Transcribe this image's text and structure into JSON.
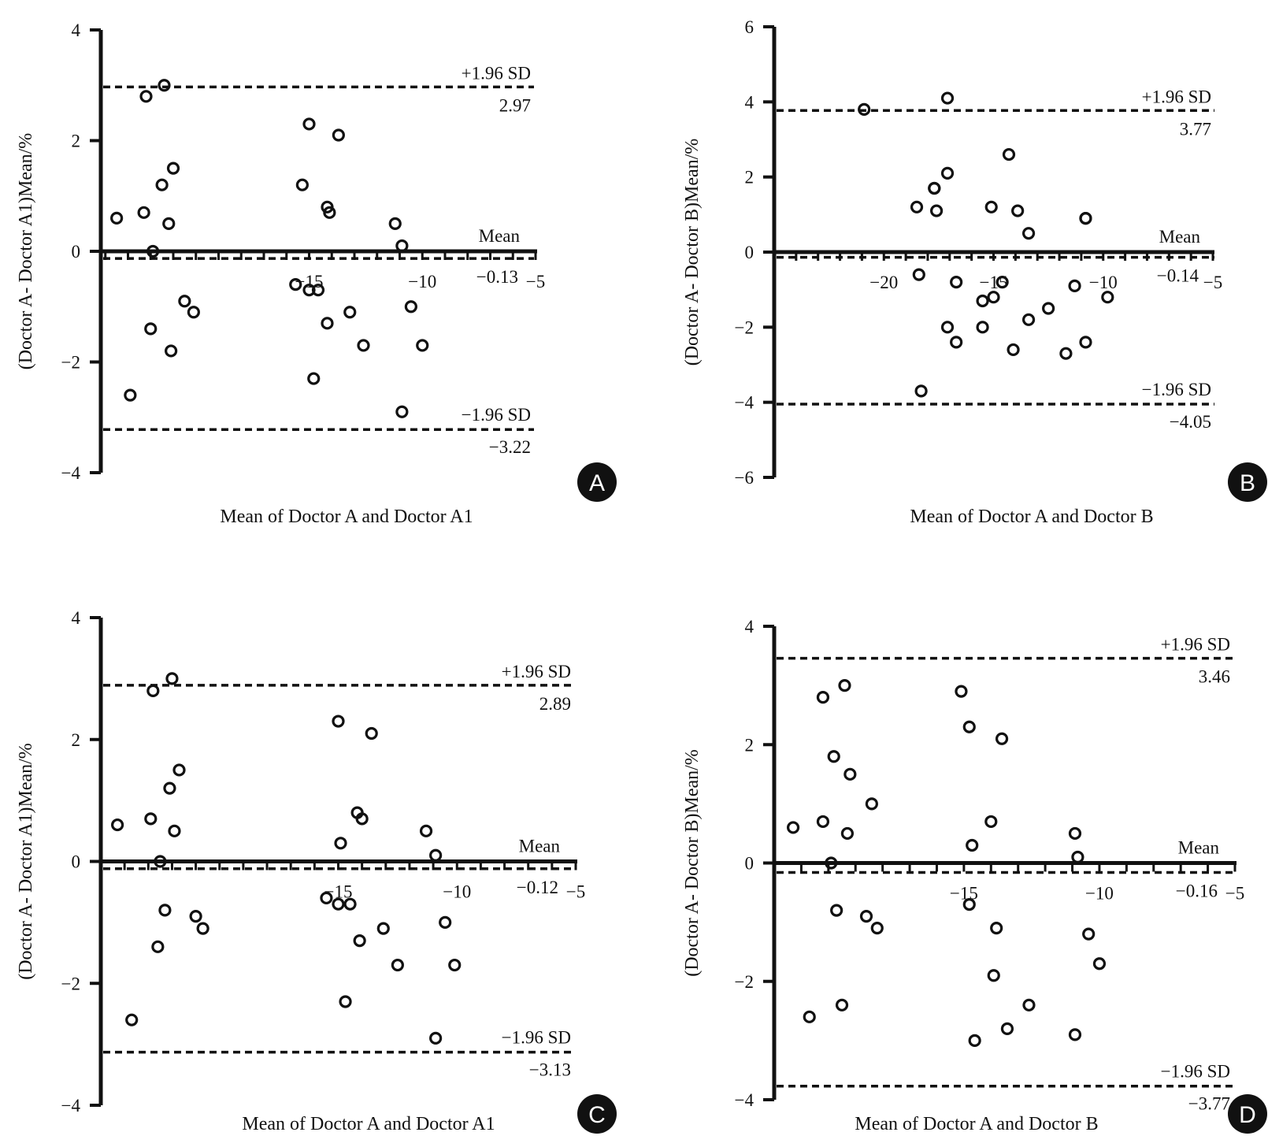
{
  "colors": {
    "ink": "#111111",
    "background": "#ffffff",
    "badge": "#111111",
    "badge_text": "#ffffff"
  },
  "chart_data": [
    {
      "type": "scatter",
      "panel": "A",
      "xlabel": "Mean of Doctor A and Doctor A1",
      "ylabel": "(Doctor A- Doctor A1)Mean/%",
      "xlim": [
        -24.2,
        -5
      ],
      "ylim": [
        -4,
        4
      ],
      "xticks": [
        -15,
        -10,
        -5
      ],
      "yticks": [
        -4,
        -2,
        0,
        2,
        4
      ],
      "xtick_labels": [
        "−15",
        "−10",
        "−5"
      ],
      "ytick_labels": [
        "−4",
        "−2",
        "0",
        "2",
        "4"
      ],
      "mean": {
        "value": -0.13,
        "name_label": "Mean",
        "value_label": "−0.13"
      },
      "upper_limit": {
        "value": 2.97,
        "name_label": "+1.96 SD",
        "value_label": "2.97"
      },
      "lower_limit": {
        "value": -3.22,
        "value_label": "−3.22",
        "name_label": "−1.96 SD"
      },
      "points": [
        [
          -23.5,
          0.6
        ],
        [
          -22.9,
          -2.6
        ],
        [
          -22.3,
          0.7
        ],
        [
          -22.2,
          2.8
        ],
        [
          -22.0,
          -1.4
        ],
        [
          -21.9,
          0.0
        ],
        [
          -21.5,
          1.2
        ],
        [
          -21.4,
          3.0
        ],
        [
          -21.2,
          0.5
        ],
        [
          -21.1,
          -1.8
        ],
        [
          -21.0,
          1.5
        ],
        [
          -20.5,
          -0.9
        ],
        [
          -20.1,
          -1.1
        ],
        [
          -15.6,
          -0.6
        ],
        [
          -15.3,
          1.2
        ],
        [
          -15.0,
          2.3
        ],
        [
          -15.0,
          -0.7
        ],
        [
          -14.8,
          -2.3
        ],
        [
          -14.6,
          -0.7
        ],
        [
          -14.2,
          0.8
        ],
        [
          -14.2,
          -1.3
        ],
        [
          -14.1,
          0.7
        ],
        [
          -13.7,
          2.1
        ],
        [
          -13.2,
          -1.1
        ],
        [
          -12.6,
          -1.7
        ],
        [
          -11.2,
          0.5
        ],
        [
          -10.9,
          0.1
        ],
        [
          -10.9,
          -2.9
        ],
        [
          -10.5,
          -1.0
        ],
        [
          -10.0,
          -1.7
        ]
      ],
      "badge": "A"
    },
    {
      "type": "scatter",
      "panel": "B",
      "xlabel": "Mean of Doctor A and Doctor B",
      "ylabel": "(Doctor A- Doctor B)Mean/%",
      "xlim": [
        -25,
        -5
      ],
      "ylim": [
        -6,
        6
      ],
      "xticks": [
        -20,
        -15,
        -10,
        -5
      ],
      "yticks": [
        -6,
        -4,
        -2,
        0,
        2,
        4,
        6
      ],
      "xtick_labels": [
        "−20",
        "−15",
        "−10",
        "−5"
      ],
      "ytick_labels": [
        "−6",
        "−4",
        "−2",
        "0",
        "2",
        "4",
        "6"
      ],
      "mean": {
        "value": -0.14,
        "name_label": "Mean",
        "value_label": "−0.14"
      },
      "upper_limit": {
        "value": 3.77,
        "name_label": "+1.96 SD",
        "value_label": "3.77"
      },
      "lower_limit": {
        "value": -4.05,
        "value_label": "−4.05",
        "name_label": "−1.96 SD"
      },
      "points": [
        [
          -20.9,
          3.8
        ],
        [
          -18.5,
          1.2
        ],
        [
          -18.4,
          -0.6
        ],
        [
          -18.3,
          -3.7
        ],
        [
          -17.7,
          1.7
        ],
        [
          -17.7,
          1.7
        ],
        [
          -17.6,
          1.1
        ],
        [
          -17.1,
          4.1
        ],
        [
          -17.1,
          2.1
        ],
        [
          -17.1,
          -2.0
        ],
        [
          -16.7,
          -0.8
        ],
        [
          -16.7,
          -2.4
        ],
        [
          -15.5,
          -1.3
        ],
        [
          -15.5,
          -2.0
        ],
        [
          -15.1,
          1.2
        ],
        [
          -15.0,
          -1.2
        ],
        [
          -14.6,
          -0.8
        ],
        [
          -14.3,
          2.6
        ],
        [
          -14.1,
          -2.6
        ],
        [
          -13.9,
          1.1
        ],
        [
          -13.4,
          0.5
        ],
        [
          -13.4,
          -1.8
        ],
        [
          -12.5,
          -1.5
        ],
        [
          -11.7,
          -2.7
        ],
        [
          -11.3,
          -0.9
        ],
        [
          -10.8,
          0.9
        ],
        [
          -10.8,
          0.9
        ],
        [
          -10.8,
          -2.4
        ],
        [
          -9.8,
          -1.2
        ]
      ],
      "badge": "B"
    },
    {
      "type": "scatter",
      "panel": "C",
      "xlabel": "Mean of Doctor A and Doctor A1",
      "ylabel": "(Doctor A- Doctor A1)Mean/%",
      "xlim": [
        -25,
        -5
      ],
      "ylim": [
        -4,
        4
      ],
      "xticks": [
        -15,
        -10,
        -5
      ],
      "yticks": [
        -4,
        -2,
        0,
        2,
        4
      ],
      "xtick_labels": [
        "−15",
        "−10",
        "−5"
      ],
      "ytick_labels": [
        "−4",
        "−2",
        "0",
        "2",
        "4"
      ],
      "mean": {
        "value": -0.12,
        "name_label": "Mean",
        "value_label": "−0.12"
      },
      "upper_limit": {
        "value": 2.89,
        "name_label": "+1.96 SD",
        "value_label": "2.89"
      },
      "lower_limit": {
        "value": -3.13,
        "value_label": "−3.13",
        "name_label": "−1.96 SD"
      },
      "points": [
        [
          -24.3,
          0.6
        ],
        [
          -23.7,
          -2.6
        ],
        [
          -22.9,
          0.7
        ],
        [
          -22.8,
          2.8
        ],
        [
          -22.6,
          -1.4
        ],
        [
          -22.5,
          0.0
        ],
        [
          -22.3,
          -0.8
        ],
        [
          -22.1,
          1.2
        ],
        [
          -22.0,
          3.0
        ],
        [
          -21.9,
          0.5
        ],
        [
          -21.7,
          1.5
        ],
        [
          -21.0,
          -0.9
        ],
        [
          -20.7,
          -1.1
        ],
        [
          -15.5,
          -0.6
        ],
        [
          -15.0,
          2.3
        ],
        [
          -15.0,
          -0.7
        ],
        [
          -14.9,
          0.3
        ],
        [
          -14.7,
          -2.3
        ],
        [
          -14.5,
          -0.7
        ],
        [
          -14.2,
          0.8
        ],
        [
          -14.1,
          -1.3
        ],
        [
          -14.0,
          0.7
        ],
        [
          -13.6,
          2.1
        ],
        [
          -13.1,
          -1.1
        ],
        [
          -12.5,
          -1.7
        ],
        [
          -11.3,
          0.5
        ],
        [
          -10.9,
          0.1
        ],
        [
          -10.9,
          -2.9
        ],
        [
          -10.5,
          -1.0
        ],
        [
          -10.1,
          -1.7
        ]
      ],
      "badge": "C"
    },
    {
      "type": "scatter",
      "panel": "D",
      "xlabel": "Mean of Doctor A and Doctor B",
      "ylabel": "(Doctor A- Doctor B)Mean/%",
      "xlim": [
        -22,
        -5
      ],
      "ylim": [
        -4,
        4
      ],
      "xticks": [
        -15,
        -10,
        -5
      ],
      "yticks": [
        -4,
        -2,
        0,
        2,
        4
      ],
      "xtick_labels": [
        "−15",
        "−10",
        "−5"
      ],
      "ytick_labels": [
        "−4",
        "−2",
        "0",
        "2",
        "4"
      ],
      "mean": {
        "value": -0.16,
        "name_label": "Mean",
        "value_label": "−0.16"
      },
      "upper_limit": {
        "value": 3.46,
        "name_label": "+1.96 SD",
        "value_label": "3.46"
      },
      "lower_limit": {
        "value": -3.77,
        "value_label": "−3.77",
        "name_label": "−1.96 SD"
      },
      "points": [
        [
          -21.3,
          0.6
        ],
        [
          -20.7,
          -2.6
        ],
        [
          -20.2,
          2.8
        ],
        [
          -20.2,
          0.7
        ],
        [
          -19.8,
          1.8
        ],
        [
          -19.9,
          0.0
        ],
        [
          -19.7,
          -0.8
        ],
        [
          -19.5,
          -2.4
        ],
        [
          -19.4,
          3.0
        ],
        [
          -19.3,
          0.5
        ],
        [
          -19.2,
          1.5
        ],
        [
          -18.6,
          -0.9
        ],
        [
          -18.4,
          1.0
        ],
        [
          -18.2,
          -1.1
        ],
        [
          -15.1,
          2.9
        ],
        [
          -14.8,
          2.3
        ],
        [
          -14.8,
          -0.7
        ],
        [
          -14.7,
          0.3
        ],
        [
          -14.6,
          -3.0
        ],
        [
          -14.0,
          0.7
        ],
        [
          -13.9,
          -1.9
        ],
        [
          -13.8,
          -1.1
        ],
        [
          -13.6,
          2.1
        ],
        [
          -13.4,
          -2.8
        ],
        [
          -12.6,
          -2.4
        ],
        [
          -10.9,
          0.5
        ],
        [
          -10.9,
          -2.9
        ],
        [
          -10.8,
          0.1
        ],
        [
          -10.4,
          -1.2
        ],
        [
          -10.0,
          -1.7
        ]
      ],
      "badge": "D"
    }
  ]
}
